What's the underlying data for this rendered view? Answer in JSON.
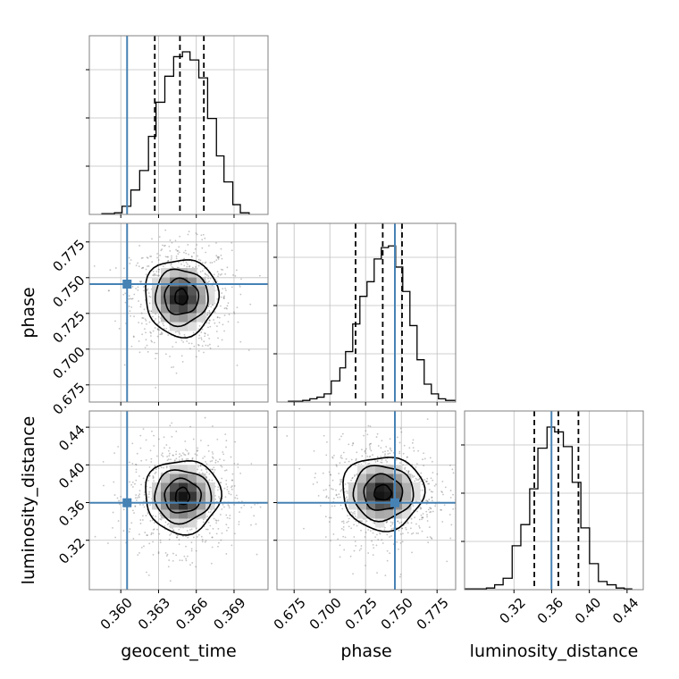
{
  "chart_data": {
    "type": "corner",
    "parameters": [
      "geocent_time",
      "phase",
      "luminosity_distance"
    ],
    "axis_labels": {
      "geocent_time": "geocent_time",
      "phase": "phase",
      "luminosity_distance": "luminosity_distance"
    },
    "ranges": {
      "geocent_time": [
        0.3575,
        0.3717
      ],
      "phase": [
        0.663,
        0.788
      ],
      "luminosity_distance": [
        0.2676,
        0.4572
      ]
    },
    "ticks": {
      "geocent_time": [
        "0.360",
        "0.363",
        "0.366",
        "0.369"
      ],
      "phase": [
        "0.675",
        "0.700",
        "0.725",
        "0.750",
        "0.775"
      ],
      "luminosity_distance": [
        "0.32",
        "0.36",
        "0.40",
        "0.44"
      ]
    },
    "truths": {
      "geocent_time": 0.3605,
      "phase": 0.7455,
      "luminosity_distance": 0.3598
    },
    "quantiles": {
      "geocent_time": [
        0.3627,
        0.3647,
        0.3666
      ],
      "phase": [
        0.718,
        0.737,
        0.7505
      ],
      "luminosity_distance": [
        0.3416,
        0.3671,
        0.3884
      ]
    },
    "histograms": {
      "geocent_time": {
        "edges": [
          0.3585,
          0.3595,
          0.3601,
          0.3608,
          0.3615,
          0.3622,
          0.3628,
          0.3635,
          0.3642,
          0.3649,
          0.3655,
          0.3662,
          0.3669,
          0.3676,
          0.3682,
          0.3689,
          0.3695,
          0.3702
        ],
        "counts": [
          0.005,
          0.01,
          0.05,
          0.15,
          0.27,
          0.48,
          0.69,
          0.85,
          0.97,
          1.0,
          0.95,
          0.84,
          0.59,
          0.36,
          0.2,
          0.06,
          0.01
        ]
      },
      "phase": {
        "edges": [
          0.671,
          0.681,
          0.686,
          0.691,
          0.696,
          0.701,
          0.707,
          0.711,
          0.716,
          0.721,
          0.726,
          0.731,
          0.736,
          0.741,
          0.746,
          0.751,
          0.756,
          0.761,
          0.766,
          0.771,
          0.776,
          0.781,
          0.788
        ],
        "counts": [
          0.005,
          0.01,
          0.02,
          0.03,
          0.05,
          0.13,
          0.21,
          0.31,
          0.48,
          0.65,
          0.74,
          0.88,
          0.95,
          0.96,
          0.83,
          0.68,
          0.47,
          0.26,
          0.11,
          0.05,
          0.02,
          0.01
        ]
      },
      "luminosity_distance": {
        "edges": [
          0.2676,
          0.2908,
          0.2995,
          0.3085,
          0.3181,
          0.3273,
          0.3367,
          0.3454,
          0.3551,
          0.3632,
          0.3724,
          0.3818,
          0.391,
          0.4002,
          0.4096,
          0.4188,
          0.4284,
          0.437,
          0.445
        ],
        "counts": [
          0.005,
          0.01,
          0.03,
          0.07,
          0.27,
          0.4,
          0.62,
          0.87,
          1.0,
          0.97,
          0.88,
          0.66,
          0.38,
          0.16,
          0.05,
          0.03,
          0.01,
          0.005
        ]
      }
    },
    "pair_density": {
      "geocent_time|phase": {
        "center": [
          0.3648,
          0.7365
        ],
        "levels_halfwidth": [
          [
            0.0005,
            0.0055
          ],
          [
            0.00135,
            0.0125
          ],
          [
            0.0021,
            0.0195
          ],
          [
            0.0029,
            0.027
          ]
        ],
        "scatter_spread": [
          0.0036,
          0.034
        ]
      },
      "geocent_time|luminosity_distance": {
        "center": [
          0.3649,
          0.3668
        ],
        "levels_halfwidth": [
          [
            0.00055,
            0.009
          ],
          [
            0.00145,
            0.018
          ],
          [
            0.00225,
            0.028
          ],
          [
            0.003,
            0.039
          ]
        ],
        "scatter_spread": [
          0.0038,
          0.052
        ]
      },
      "phase|luminosity_distance": {
        "center": [
          0.737,
          0.3705
        ],
        "levels_halfwidth": [
          [
            0.006,
            0.008
          ],
          [
            0.0135,
            0.019
          ],
          [
            0.021,
            0.029
          ],
          [
            0.0285,
            0.039
          ]
        ],
        "scatter_spread": [
          0.036,
          0.052
        ]
      }
    },
    "colors": {
      "truth": "#4682b4",
      "hist": "#000000",
      "grid": "#bfbfbf",
      "density": "#000000"
    }
  }
}
